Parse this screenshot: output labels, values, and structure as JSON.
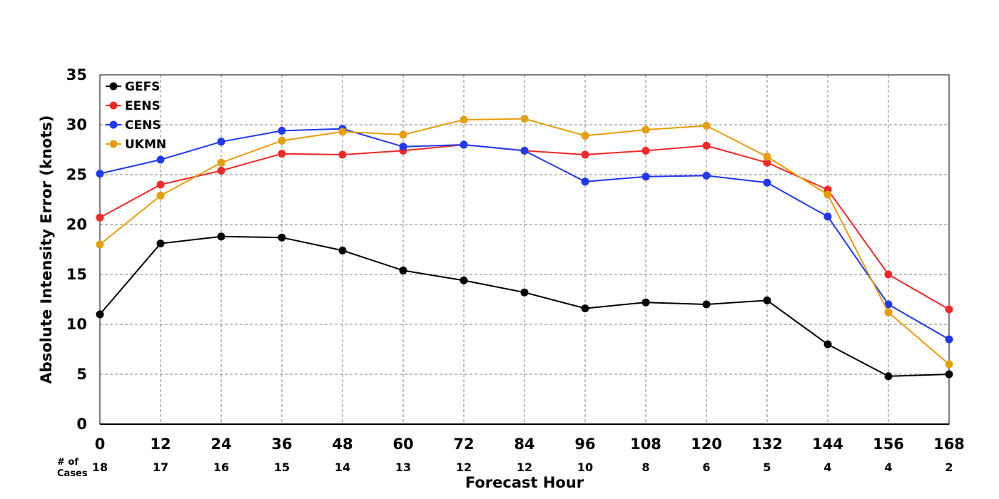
{
  "chart_data": {
    "type": "line",
    "title": "",
    "xlabel": "Forecast Hour",
    "ylabel": "Absolute Intensity Error (knots)",
    "x": [
      0,
      12,
      24,
      36,
      48,
      60,
      72,
      84,
      96,
      108,
      120,
      132,
      144,
      156,
      168
    ],
    "xlim": [
      0,
      168
    ],
    "ylim": [
      0,
      35
    ],
    "y_ticks": [
      0,
      5,
      10,
      15,
      20,
      25,
      30,
      35
    ],
    "grid": true,
    "legend_position": "top-left",
    "cases_label": "# of Cases",
    "cases_label_lines": [
      "# of",
      "Cases"
    ],
    "cases": [
      18,
      17,
      16,
      15,
      14,
      13,
      12,
      12,
      10,
      8,
      6,
      5,
      4,
      4,
      2
    ],
    "series": [
      {
        "name": "GEFS",
        "color": "#000000",
        "values": [
          11.0,
          18.1,
          18.8,
          18.7,
          17.4,
          15.4,
          14.4,
          13.2,
          11.6,
          12.2,
          12.0,
          12.4,
          8.0,
          4.8,
          5.0
        ]
      },
      {
        "name": "EENS",
        "color": "#f02828",
        "values": [
          20.7,
          24.0,
          25.4,
          27.1,
          27.0,
          27.4,
          28.0,
          27.4,
          27.0,
          27.4,
          27.9,
          26.2,
          23.5,
          15.0,
          11.5
        ]
      },
      {
        "name": "CENS",
        "color": "#2039f0",
        "values": [
          25.1,
          26.5,
          28.3,
          29.4,
          29.6,
          27.8,
          28.0,
          27.4,
          24.3,
          24.8,
          24.9,
          24.2,
          20.8,
          12.0,
          8.5
        ]
      },
      {
        "name": "UKMN",
        "color": "#e69e0c",
        "values": [
          18.0,
          22.9,
          26.2,
          28.4,
          29.3,
          29.0,
          30.5,
          30.6,
          28.9,
          29.5,
          29.9,
          26.8,
          23.0,
          11.2,
          6.0
        ]
      }
    ]
  }
}
